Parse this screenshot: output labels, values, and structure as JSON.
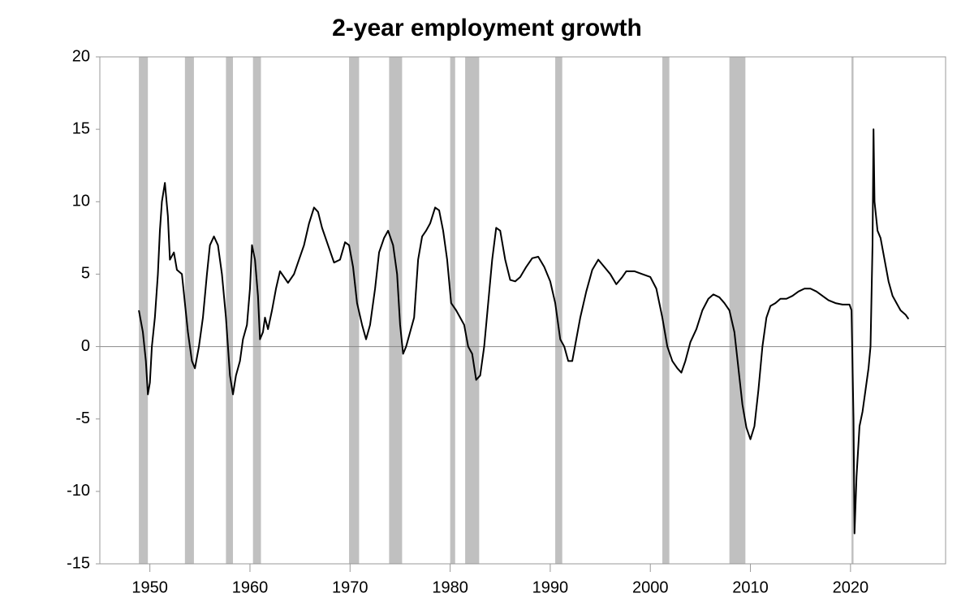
{
  "chart_data": {
    "type": "line",
    "title": "2-year employment growth",
    "x": [
      1948.9,
      1949.3,
      1949.6,
      1949.8,
      1950.0,
      1950.2,
      1950.5,
      1950.8,
      1951.0,
      1951.2,
      1951.5,
      1951.8,
      1952.0,
      1952.4,
      1952.7,
      1953.2,
      1953.5,
      1953.8,
      1954.2,
      1954.5,
      1954.9,
      1955.3,
      1955.7,
      1956.0,
      1956.4,
      1956.8,
      1957.2,
      1957.6,
      1958.0,
      1958.3,
      1958.6,
      1959.0,
      1959.3,
      1959.7,
      1960.0,
      1960.2,
      1960.5,
      1960.8,
      1961.0,
      1961.3,
      1961.5,
      1961.8,
      1962.2,
      1962.6,
      1963.0,
      1963.4,
      1963.8,
      1964.4,
      1964.9,
      1965.4,
      1965.9,
      1966.4,
      1966.8,
      1967.2,
      1967.8,
      1968.4,
      1969.0,
      1969.5,
      1969.9,
      1970.3,
      1970.7,
      1971.2,
      1971.6,
      1972.0,
      1972.5,
      1972.9,
      1973.4,
      1973.8,
      1974.3,
      1974.7,
      1975.0,
      1975.3,
      1975.6,
      1976.0,
      1976.4,
      1976.8,
      1977.2,
      1977.6,
      1978.0,
      1978.5,
      1978.9,
      1979.3,
      1979.7,
      1980.1,
      1980.6,
      1981.0,
      1981.4,
      1981.8,
      1982.2,
      1982.6,
      1983.0,
      1983.4,
      1983.8,
      1984.2,
      1984.6,
      1985.0,
      1985.5,
      1986.0,
      1986.5,
      1987.0,
      1987.6,
      1988.2,
      1988.8,
      1989.4,
      1990.0,
      1990.5,
      1991.0,
      1991.4,
      1991.8,
      1992.2,
      1992.6,
      1993.0,
      1993.6,
      1994.2,
      1994.8,
      1995.4,
      1996.0,
      1996.6,
      1997.2,
      1997.6,
      1998.4,
      1999.2,
      2000.0,
      2000.6,
      2001.2,
      2001.7,
      2002.2,
      2002.7,
      2003.1,
      2003.5,
      2004.0,
      2004.6,
      2005.2,
      2005.8,
      2006.3,
      2006.9,
      2007.4,
      2007.9,
      2008.4,
      2008.8,
      2009.2,
      2009.6,
      2010.0,
      2010.4,
      2010.8,
      2011.2,
      2011.6,
      2012.0,
      2012.5,
      2013.0,
      2013.6,
      2014.2,
      2014.8,
      2015.4,
      2016.0,
      2016.6,
      2017.2,
      2017.8,
      2018.5,
      2019.2,
      2019.9,
      2020.1,
      2020.3,
      2020.4,
      2020.6,
      2020.9,
      2021.2,
      2021.5,
      2021.8,
      2022.0,
      2022.2,
      2022.3,
      2022.4,
      2022.7,
      2023.0,
      2023.4,
      2023.8,
      2024.2,
      2024.6,
      2025.0,
      2025.5,
      2025.8
    ],
    "values": [
      2.5,
      1.0,
      -1,
      -3.3,
      -2.5,
      0,
      2,
      5,
      8,
      10,
      11.3,
      9,
      6,
      6.5,
      5.3,
      5,
      3,
      1,
      -1,
      -1.5,
      0,
      2,
      5,
      7,
      7.6,
      7,
      5,
      2,
      -2,
      -3.3,
      -2,
      -1,
      0.5,
      1.5,
      4,
      7,
      6,
      3.5,
      0.5,
      1,
      2,
      1.2,
      2.5,
      4,
      5.2,
      4.8,
      4.4,
      5,
      6,
      7,
      8.5,
      9.6,
      9.3,
      8.2,
      7,
      5.8,
      6,
      7.2,
      7,
      5.5,
      3,
      1.5,
      0.5,
      1.5,
      4,
      6.5,
      7.5,
      8,
      7,
      5,
      1.5,
      -0.5,
      0,
      1,
      2,
      6,
      7.6,
      8,
      8.5,
      9.6,
      9.4,
      8,
      6,
      3,
      2.5,
      2,
      1.5,
      0,
      -0.5,
      -2.3,
      -2,
      0,
      3,
      6,
      8.2,
      8,
      6,
      4.6,
      4.5,
      4.8,
      5.5,
      6.1,
      6.2,
      5.5,
      4.5,
      3,
      0.5,
      0,
      -1,
      -1,
      0.5,
      2,
      3.8,
      5.3,
      6,
      5.5,
      5,
      4.3,
      4.8,
      5.2,
      5.2,
      5,
      4.8,
      4,
      2,
      0,
      -1,
      -1.5,
      -1.8,
      -1,
      0.3,
      1.2,
      2.5,
      3.3,
      3.6,
      3.4,
      3,
      2.5,
      1,
      -1.5,
      -4,
      -5.6,
      -6.4,
      -5.5,
      -3,
      0,
      2,
      2.8,
      3,
      3.3,
      3.3,
      3.5,
      3.8,
      4,
      4,
      3.8,
      3.5,
      3.2,
      3,
      2.9,
      2.9,
      2.5,
      -5,
      -12.9,
      -9,
      -5.5,
      -4.5,
      -3,
      -1.5,
      0,
      7,
      15,
      10,
      8,
      7.5,
      6,
      4.5,
      3.5,
      3,
      2.5,
      2.2,
      1.9
    ],
    "color": "#000000",
    "recessions": [
      [
        1948.9,
        1949.8
      ],
      [
        1953.5,
        1954.4
      ],
      [
        1957.6,
        1958.3
      ],
      [
        1960.3,
        1961.1
      ],
      [
        1969.9,
        1970.9
      ],
      [
        1973.9,
        1975.2
      ],
      [
        1980.0,
        1980.5
      ],
      [
        1981.5,
        1982.9
      ],
      [
        1990.5,
        1991.2
      ],
      [
        2001.2,
        2001.9
      ],
      [
        2007.9,
        2009.5
      ],
      [
        2020.1,
        2020.3
      ]
    ],
    "recession_color": "#c0c0c0",
    "hline": 0,
    "xlim": [
      1945,
      2029.5
    ],
    "xticks": [
      1950,
      1960,
      1970,
      1980,
      1990,
      2000,
      2010,
      2020
    ],
    "ylim": [
      -15,
      20
    ],
    "yticks": [
      -15,
      -10,
      -5,
      0,
      5,
      10,
      15,
      20
    ]
  }
}
